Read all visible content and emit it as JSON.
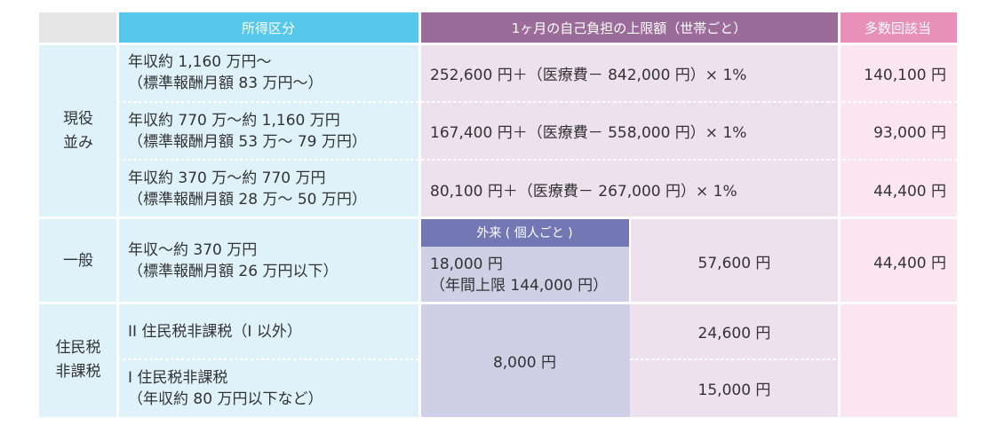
{
  "colors": {
    "header_gray": "#e6e6e6",
    "header_cyan": "#55c8ec",
    "header_purple": "#9b6c9a",
    "header_pink": "#e88fba",
    "cyan_light": "#dff2fa",
    "lavender_light": "#ece1ed",
    "pink_light": "#fbe6ef",
    "outpatient_header": "#7378b4",
    "outpatient_body": "#cfd0e6"
  },
  "header": {
    "income": "所得区分",
    "limit": "1ヶ月の自己負担の上限額（世帯ごと）",
    "multi": "多数回該当"
  },
  "groups": {
    "active": "現役\n並み",
    "general": "一般",
    "exempt": "住民税\n非課税"
  },
  "rows": [
    {
      "income": "年収約 1,160 万円〜\n（標準報酬月額 83 万円〜）",
      "formula": "252,600 円＋（医療費－ 842,000 円）× 1%",
      "multi": "140,100 円"
    },
    {
      "income": "年収約 770 万〜約 1,160 万円\n（標準報酬月額 53 万〜 79 万円）",
      "formula": "167,400 円＋（医療費－ 558,000 円）× 1%",
      "multi": "93,000 円"
    },
    {
      "income": "年収約 370 万〜約 770 万円\n（標準報酬月額 28 万〜 50 万円）",
      "formula": "80,100 円＋（医療費－ 267,000 円）× 1%",
      "multi": "44,400 円"
    }
  ],
  "general": {
    "income": "年収〜約 370 万円\n（標準報酬月額 26 万円以下）",
    "outpatient_label": "外来 ( 個人ごと )",
    "outpatient_value": "18,000 円\n（年間上限 144,000 円）",
    "limit": "57,600 円",
    "multi": "44,400 円"
  },
  "exempt": {
    "row2_income": "II 住民税非課税（I 以外）",
    "row1_income": "I 住民税非課税\n（年収約 80 万円以下など）",
    "outpatient_value": "8,000 円",
    "row2_limit": "24,600 円",
    "row1_limit": "15,000 円"
  }
}
